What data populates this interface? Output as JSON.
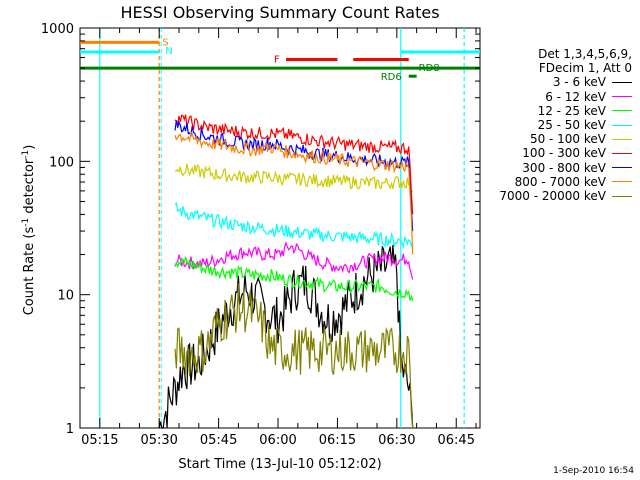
{
  "chart_data": {
    "type": "line",
    "title": "HESSI Observing Summary Count Rates",
    "xlabel": "Start Time (13-Jul-10 05:12:02)",
    "ylabel_main": "Count Rate (s",
    "ylabel_sup1": "-1",
    "ylabel_mid": " detector",
    "ylabel_sup2": "-1",
    "ylabel_end": ")",
    "y_scale": "log",
    "ylim": [
      1,
      1000
    ],
    "xlim": [
      "05:10",
      "06:51"
    ],
    "x_ticks": [
      "05:15",
      "05:30",
      "05:45",
      "06:00",
      "06:15",
      "06:30",
      "06:45"
    ],
    "y_ticks": [
      "1",
      "10",
      "100",
      "1000"
    ],
    "flags": {
      "S": {
        "label": "S",
        "color": "#ff8000",
        "start": "05:12",
        "end": "05:30",
        "level": 780
      },
      "N": {
        "label": "N",
        "color": "#00ffff",
        "start": "05:12",
        "end": "05:30",
        "level": 660
      },
      "F": {
        "label": "F",
        "color": "#ff0000",
        "segments": [
          [
            "06:02",
            "06:15"
          ],
          [
            "06:19",
            "06:33"
          ]
        ],
        "level": 580
      },
      "RD8": {
        "label": "RD8",
        "color": "#008000",
        "start": "05:12",
        "end": "06:49",
        "level": 500
      },
      "RD6": {
        "label": "RD6",
        "color": "#008000",
        "start": "06:33",
        "end": "06:35",
        "level": 435
      },
      "N2": {
        "color": "#00ffff",
        "start": "06:31",
        "end": "06:49",
        "level": 660
      }
    },
    "night_boundaries": [
      "05:15",
      "06:31",
      "06:47"
    ],
    "saa_boundaries": [
      "05:30"
    ],
    "series": [
      {
        "name": "3 - 6 keV",
        "color": "#000000",
        "start": "05:30",
        "end": "06:35",
        "points": [
          [
            "05:30",
            1
          ],
          [
            "05:36",
            2.8
          ],
          [
            "05:40",
            3.0
          ],
          [
            "05:44",
            5
          ],
          [
            "05:47",
            7.5
          ],
          [
            "05:50",
            9.5
          ],
          [
            "05:52",
            11
          ],
          [
            "05:55",
            9
          ],
          [
            "05:58",
            7
          ],
          [
            "06:00",
            6.5
          ],
          [
            "06:02",
            8
          ],
          [
            "06:04",
            11
          ],
          [
            "06:07",
            12.5
          ],
          [
            "06:09",
            10
          ],
          [
            "06:11",
            7.5
          ],
          [
            "06:13",
            6.5
          ],
          [
            "06:16",
            7.5
          ],
          [
            "06:19",
            10
          ],
          [
            "06:22",
            13
          ],
          [
            "06:25",
            15
          ],
          [
            "06:28",
            16.5
          ],
          [
            "06:30",
            15
          ],
          [
            "06:31",
            3
          ],
          [
            "06:33",
            2
          ],
          [
            "06:34",
            1
          ]
        ]
      },
      {
        "name": "6 - 12 keV",
        "color": "#ff00ff",
        "start": "05:34",
        "end": "06:35",
        "points": [
          [
            "05:34",
            18
          ],
          [
            "05:37",
            17.5
          ],
          [
            "05:41",
            17
          ],
          [
            "05:44",
            18
          ],
          [
            "05:47",
            19.5
          ],
          [
            "05:52",
            21
          ],
          [
            "05:56",
            20
          ],
          [
            "06:00",
            20
          ],
          [
            "06:03",
            23
          ],
          [
            "06:05",
            22
          ],
          [
            "06:08",
            19
          ],
          [
            "06:12",
            17
          ],
          [
            "06:16",
            16
          ],
          [
            "06:20",
            17
          ],
          [
            "06:24",
            18.5
          ],
          [
            "06:28",
            19
          ],
          [
            "06:31",
            18
          ],
          [
            "06:33",
            19
          ],
          [
            "06:34",
            13
          ]
        ]
      },
      {
        "name": "12 - 25 keV",
        "color": "#00ff00",
        "start": "05:34",
        "end": "06:35",
        "points": [
          [
            "05:34",
            18
          ],
          [
            "05:38",
            17
          ],
          [
            "05:42",
            15.5
          ],
          [
            "05:46",
            15
          ],
          [
            "05:50",
            14.5
          ],
          [
            "05:54",
            14
          ],
          [
            "05:58",
            14
          ],
          [
            "06:02",
            13
          ],
          [
            "06:06",
            12.5
          ],
          [
            "06:10",
            12
          ],
          [
            "06:14",
            11.5
          ],
          [
            "06:18",
            11.5
          ],
          [
            "06:22",
            11.5
          ],
          [
            "06:26",
            11.5
          ],
          [
            "06:30",
            10.5
          ],
          [
            "06:33",
            10.5
          ],
          [
            "06:34",
            9
          ]
        ]
      },
      {
        "name": "25 - 50 keV",
        "color": "#00ffff",
        "start": "05:34",
        "end": "06:35",
        "points": [
          [
            "05:34",
            44
          ],
          [
            "05:38",
            40
          ],
          [
            "05:42",
            37
          ],
          [
            "05:46",
            35
          ],
          [
            "05:50",
            33
          ],
          [
            "05:54",
            32
          ],
          [
            "05:58",
            31
          ],
          [
            "06:02",
            30
          ],
          [
            "06:06",
            29
          ],
          [
            "06:10",
            28
          ],
          [
            "06:14",
            27.5
          ],
          [
            "06:18",
            27
          ],
          [
            "06:22",
            26.5
          ],
          [
            "06:26",
            26
          ],
          [
            "06:30",
            25.5
          ],
          [
            "06:33",
            25.5
          ],
          [
            "06:34",
            22
          ]
        ]
      },
      {
        "name": "50 - 100 keV",
        "color": "#cccc00",
        "start": "05:34",
        "end": "06:35",
        "points": [
          [
            "05:34",
            90
          ],
          [
            "05:38",
            85
          ],
          [
            "05:42",
            82
          ],
          [
            "05:46",
            79
          ],
          [
            "05:50",
            77
          ],
          [
            "05:54",
            76
          ],
          [
            "05:58",
            76
          ],
          [
            "06:02",
            74
          ],
          [
            "06:06",
            73
          ],
          [
            "06:10",
            72
          ],
          [
            "06:14",
            71
          ],
          [
            "06:18",
            70
          ],
          [
            "06:22",
            69
          ],
          [
            "06:26",
            68
          ],
          [
            "06:30",
            70
          ],
          [
            "06:33",
            70
          ],
          [
            "06:34",
            60
          ]
        ]
      },
      {
        "name": "100 - 300 keV",
        "color": "#ff0000",
        "start": "05:34",
        "end": "06:35",
        "points": [
          [
            "05:34",
            215
          ],
          [
            "05:38",
            195
          ],
          [
            "05:42",
            180
          ],
          [
            "05:46",
            172
          ],
          [
            "05:50",
            167
          ],
          [
            "05:54",
            162
          ],
          [
            "05:58",
            162
          ],
          [
            "06:02",
            158
          ],
          [
            "06:06",
            150
          ],
          [
            "06:10",
            142
          ],
          [
            "06:14",
            137
          ],
          [
            "06:18",
            133
          ],
          [
            "06:22",
            130
          ],
          [
            "06:26",
            128
          ],
          [
            "06:30",
            126
          ],
          [
            "06:33",
            126
          ],
          [
            "06:34",
            40
          ]
        ]
      },
      {
        "name": "300 - 800 keV",
        "color": "#0000ff",
        "start": "05:34",
        "end": "06:35",
        "points": [
          [
            "05:34",
            190
          ],
          [
            "05:38",
            170
          ],
          [
            "05:42",
            155
          ],
          [
            "05:46",
            145
          ],
          [
            "05:50",
            138
          ],
          [
            "05:54",
            132
          ],
          [
            "05:58",
            137
          ],
          [
            "06:02",
            127
          ],
          [
            "06:06",
            120
          ],
          [
            "06:10",
            114
          ],
          [
            "06:14",
            110
          ],
          [
            "06:18",
            106
          ],
          [
            "06:22",
            103
          ],
          [
            "06:26",
            100
          ],
          [
            "06:30",
            98
          ],
          [
            "06:33",
            97
          ],
          [
            "06:34",
            30
          ]
        ]
      },
      {
        "name": "800 - 7000 keV",
        "color": "#ff8000",
        "start": "05:34",
        "end": "06:35",
        "points": [
          [
            "05:34",
            160
          ],
          [
            "05:38",
            148
          ],
          [
            "05:42",
            138
          ],
          [
            "05:46",
            132
          ],
          [
            "05:50",
            126
          ],
          [
            "05:54",
            122
          ],
          [
            "05:58",
            128
          ],
          [
            "06:02",
            118
          ],
          [
            "06:06",
            112
          ],
          [
            "06:10",
            108
          ],
          [
            "06:14",
            104
          ],
          [
            "06:18",
            100
          ],
          [
            "06:22",
            98
          ],
          [
            "06:26",
            95
          ],
          [
            "06:30",
            93
          ],
          [
            "06:33",
            92
          ],
          [
            "06:34",
            20
          ]
        ]
      },
      {
        "name": "7000 - 20000 keV",
        "color": "#808000",
        "start": "05:34",
        "end": "06:35",
        "points": [
          [
            "05:34",
            4
          ],
          [
            "05:38",
            3.5
          ],
          [
            "05:42",
            4
          ],
          [
            "05:44",
            5.5
          ],
          [
            "05:46",
            6.5
          ],
          [
            "05:50",
            8
          ],
          [
            "05:53",
            7.5
          ],
          [
            "05:56",
            6
          ],
          [
            "05:58",
            4
          ],
          [
            "06:02",
            3.8
          ],
          [
            "06:06",
            3.8
          ],
          [
            "06:10",
            3.8
          ],
          [
            "06:14",
            3.8
          ],
          [
            "06:18",
            3.8
          ],
          [
            "06:22",
            3.8
          ],
          [
            "06:26",
            3.8
          ],
          [
            "06:30",
            3.8
          ],
          [
            "06:33",
            3.8
          ],
          [
            "06:34",
            1
          ]
        ]
      }
    ]
  },
  "legend": {
    "header1": "Det 1,3,4,5,6,9,",
    "header2": "FDecim 1, Att 0"
  },
  "timestamp": "1-Sep-2010 16:54"
}
